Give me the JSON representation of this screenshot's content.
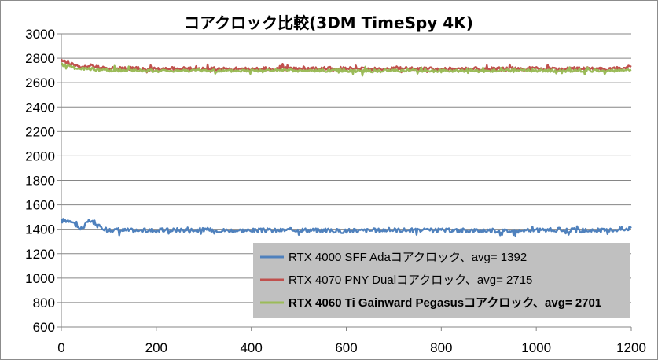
{
  "chart_data": {
    "type": "line",
    "title": "コアクロック比較(3DM TimeSpy 4K)",
    "xlabel": "",
    "ylabel": "",
    "xlim": [
      0,
      1200
    ],
    "ylim": [
      600,
      3000
    ],
    "x_ticks": [
      0,
      200,
      400,
      600,
      800,
      1000,
      1200
    ],
    "y_ticks": [
      600,
      800,
      1000,
      1200,
      1400,
      1600,
      1800,
      2000,
      2200,
      2400,
      2600,
      2800,
      3000
    ],
    "grid": "horizontal",
    "legend_position": "bottom-right",
    "series": [
      {
        "name": "RTX 4000 SFF Adaコアクロック、avg= 1392",
        "color": "#4f81bd",
        "bold": false,
        "x": [
          0,
          20,
          40,
          60,
          80,
          100,
          150,
          200,
          250,
          300,
          350,
          400,
          450,
          500,
          550,
          600,
          650,
          700,
          750,
          800,
          850,
          900,
          950,
          1000,
          1050,
          1100,
          1150,
          1200
        ],
        "y": [
          1470,
          1475,
          1400,
          1470,
          1420,
          1395,
          1390,
          1390,
          1395,
          1395,
          1390,
          1390,
          1390,
          1395,
          1390,
          1385,
          1390,
          1395,
          1390,
          1390,
          1390,
          1390,
          1385,
          1390,
          1395,
          1390,
          1390,
          1410
        ]
      },
      {
        "name": "RTX 4070 PNY Dualコアクロック、avg= 2715",
        "color": "#c0504d",
        "bold": false,
        "x": [
          0,
          20,
          40,
          60,
          80,
          100,
          150,
          200,
          250,
          300,
          350,
          400,
          450,
          500,
          550,
          600,
          650,
          700,
          750,
          800,
          850,
          900,
          950,
          1000,
          1050,
          1100,
          1150,
          1200
        ],
        "y": [
          2780,
          2760,
          2720,
          2740,
          2720,
          2715,
          2715,
          2710,
          2715,
          2715,
          2710,
          2710,
          2715,
          2710,
          2715,
          2715,
          2710,
          2715,
          2715,
          2710,
          2715,
          2710,
          2715,
          2715,
          2710,
          2715,
          2710,
          2730
        ]
      },
      {
        "name": "RTX 4060 Ti Gainward Pegasusコアクロック、avg= 2701",
        "color": "#9bbb59",
        "bold": true,
        "x": [
          0,
          20,
          40,
          60,
          80,
          100,
          150,
          200,
          250,
          300,
          350,
          400,
          450,
          500,
          550,
          600,
          650,
          700,
          750,
          800,
          850,
          900,
          950,
          1000,
          1050,
          1100,
          1150,
          1200
        ],
        "y": [
          2750,
          2730,
          2710,
          2715,
          2705,
          2700,
          2700,
          2695,
          2700,
          2700,
          2695,
          2700,
          2700,
          2695,
          2700,
          2700,
          2695,
          2700,
          2700,
          2695,
          2700,
          2695,
          2700,
          2700,
          2695,
          2700,
          2695,
          2705
        ]
      }
    ]
  }
}
